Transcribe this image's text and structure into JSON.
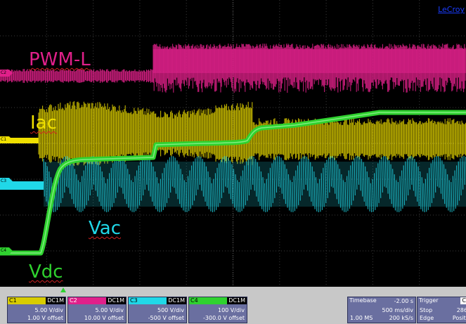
{
  "brand": "LeCroy",
  "labels": {
    "pwm": "PWM-L",
    "iac": "Iac",
    "vac": "Vac",
    "vdc": "Vdc"
  },
  "markers": {
    "c1": "C1",
    "c2": "C2",
    "c3": "C3",
    "c4": "C4"
  },
  "channels": [
    {
      "name": "C1",
      "coupling": "DC1M",
      "scale": "5.00 V/div",
      "offset": "1.00 V offset",
      "color": "#f0e000"
    },
    {
      "name": "C2",
      "coupling": "DC1M",
      "scale": "5.00 V/div",
      "offset": "10.00 V offset",
      "color": "#e0208a"
    },
    {
      "name": "C3",
      "coupling": "DC1M",
      "scale": "500 V/div",
      "offset": "-500 V offset",
      "color": "#20d8e8"
    },
    {
      "name": "C4",
      "coupling": "DC1M",
      "scale": "100 V/div",
      "offset": "-300.0 V offset",
      "color": "#2fd22f"
    }
  ],
  "timebase": {
    "label": "Timebase",
    "delay": "-2.00 s",
    "scale": "500 ms/div",
    "memory": "1.00 MS",
    "rate": "200 kS/s"
  },
  "trigger": {
    "label": "Trigger",
    "channel": "C",
    "mode": "Stop",
    "type": "Edge",
    "level": "286",
    "position": "Positi"
  },
  "colors": {
    "screen": "#000000",
    "grid": "#3a3a3a",
    "pwm": "#e0208a",
    "iac": "#f0e000",
    "vac": "#20d8e8",
    "vdc": "#2fd22f"
  }
}
